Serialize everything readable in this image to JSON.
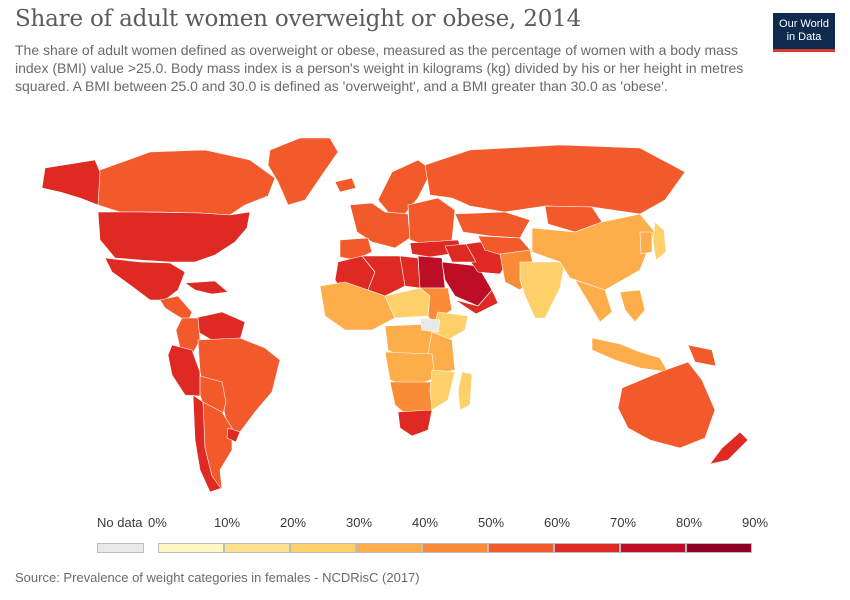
{
  "header": {
    "title": "Share of adult women overweight or obese, 2014",
    "subtitle": "The share of adult women defined as overweight or obese, measured as the percentage of women with a body mass index (BMI) value >25.0. Body mass index is a person's weight in kilograms (kg) divided by his or her height in metres squared. A BMI between 25.0 and 30.0 is defined as 'overweight', and a BMI greater than 30.0 as 'obese'."
  },
  "logo": {
    "line1": "Our World",
    "line2": "in Data"
  },
  "legend": {
    "no_data_label": "No data",
    "no_data_color": "#e8e8e8",
    "ticks": [
      "0%",
      "10%",
      "20%",
      "30%",
      "40%",
      "50%",
      "60%",
      "70%",
      "80%",
      "90%"
    ],
    "colors": [
      "#fff7c4",
      "#fee38f",
      "#fed069",
      "#fdae4a",
      "#fb8c37",
      "#f25a2c",
      "#de2a23",
      "#bc0f26",
      "#8f0024"
    ]
  },
  "source": "Source: Prevalence of weight categories in females - NCDRisC (2017)",
  "chart_data": {
    "type": "choropleth",
    "year": 2014,
    "unit": "%",
    "bins": [
      0,
      10,
      20,
      30,
      40,
      50,
      60,
      70,
      80,
      90
    ],
    "regions": [
      {
        "region": "Canada",
        "value": 57
      },
      {
        "region": "United States",
        "value": 66
      },
      {
        "region": "Alaska",
        "value": 66
      },
      {
        "region": "Greenland",
        "value": 55
      },
      {
        "region": "Mexico",
        "value": 67
      },
      {
        "region": "Central America",
        "value": 58
      },
      {
        "region": "Caribbean",
        "value": 63
      },
      {
        "region": "Venezuela & Guianas",
        "value": 68
      },
      {
        "region": "Colombia",
        "value": 57
      },
      {
        "region": "Peru & Ecuador",
        "value": 61
      },
      {
        "region": "Brazil",
        "value": 56
      },
      {
        "region": "Bolivia & Paraguay",
        "value": 57
      },
      {
        "region": "Chile",
        "value": 68
      },
      {
        "region": "Argentina",
        "value": 58
      },
      {
        "region": "Uruguay",
        "value": 62
      },
      {
        "region": "Iceland",
        "value": 55
      },
      {
        "region": "Scandinavia",
        "value": 52
      },
      {
        "region": "Western Europe",
        "value": 53
      },
      {
        "region": "Iberia",
        "value": 54
      },
      {
        "region": "Eastern Europe",
        "value": 58
      },
      {
        "region": "Russia",
        "value": 58
      },
      {
        "region": "Turkey",
        "value": 65
      },
      {
        "region": "Morocco & Western Sahara",
        "value": 63
      },
      {
        "region": "Algeria",
        "value": 63
      },
      {
        "region": "Libya",
        "value": 68
      },
      {
        "region": "Egypt",
        "value": 76
      },
      {
        "region": "Saudi Arabia",
        "value": 74
      },
      {
        "region": "Yemen & Oman",
        "value": 64
      },
      {
        "region": "Iran",
        "value": 64
      },
      {
        "region": "Iraq & Syria",
        "value": 68
      },
      {
        "region": "Kazakhstan",
        "value": 57
      },
      {
        "region": "Central Asia",
        "value": 53
      },
      {
        "region": "Afghanistan & Pakistan",
        "value": 40
      },
      {
        "region": "India",
        "value": 24
      },
      {
        "region": "Mongolia",
        "value": 55
      },
      {
        "region": "China",
        "value": 32
      },
      {
        "region": "Korea",
        "value": 36
      },
      {
        "region": "Japan",
        "value": 21
      },
      {
        "region": "Southeast Asia",
        "value": 32
      },
      {
        "region": "Indonesia",
        "value": 32
      },
      {
        "region": "Philippines",
        "value": 30
      },
      {
        "region": "Papua New Guinea",
        "value": 58
      },
      {
        "region": "Australia",
        "value": 58
      },
      {
        "region": "New Zealand",
        "value": 62
      },
      {
        "region": "West Africa",
        "value": 35
      },
      {
        "region": "Sahel",
        "value": 27
      },
      {
        "region": "Sudan",
        "value": 47
      },
      {
        "region": "Ethiopia & Horn",
        "value": 22
      },
      {
        "region": "Central Africa",
        "value": 32
      },
      {
        "region": "East Africa",
        "value": 30
      },
      {
        "region": "Angola & Zambia",
        "value": 33
      },
      {
        "region": "Namibia & Botswana",
        "value": 48
      },
      {
        "region": "South Africa",
        "value": 69
      },
      {
        "region": "Mozambique",
        "value": 27
      },
      {
        "region": "Madagascar",
        "value": 20
      },
      {
        "region": "Somalia",
        "value": null
      }
    ]
  }
}
